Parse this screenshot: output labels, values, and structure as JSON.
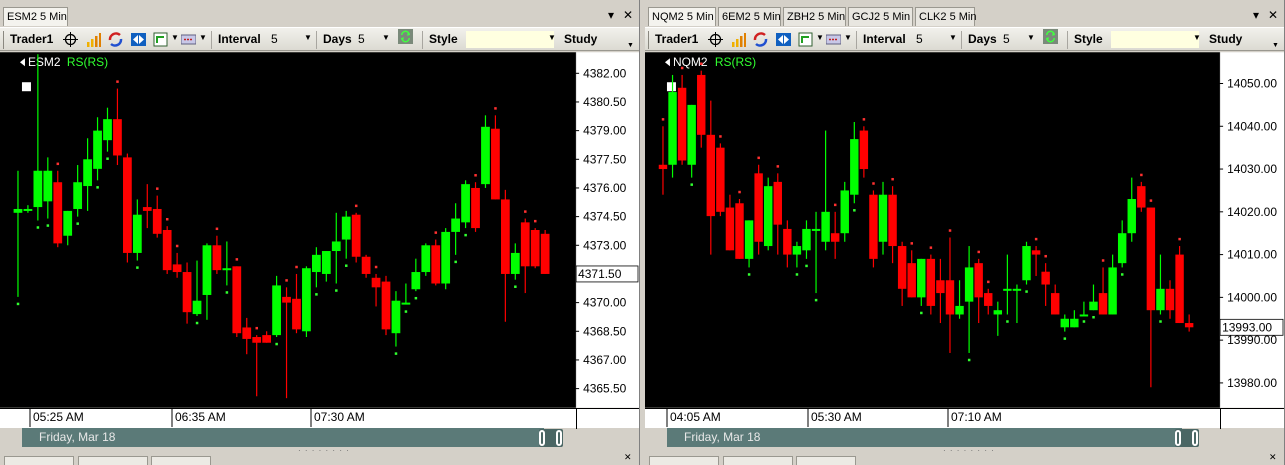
{
  "panels": [
    {
      "tabs": [
        {
          "label": "ESM2 5 Min",
          "active": true
        }
      ],
      "toolbar": {
        "workspace": "Trader1",
        "interval_label": "Interval",
        "interval_value": "5",
        "days_label": "Days",
        "days_value": "5",
        "style_label": "Style",
        "study_label": "Study"
      },
      "chart_data": {
        "type": "candlestick",
        "symbol": "ESM2",
        "indicator": "RS(RS)",
        "last_price_label": "4371.50",
        "y_ticks": [
          "4382.00",
          "4380.50",
          "4379.00",
          "4377.50",
          "4376.00",
          "4374.50",
          "4373.00",
          "4370.00",
          "4368.50",
          "4367.00",
          "4365.50"
        ],
        "ylim": [
          4364.5,
          4383.1
        ],
        "x_labels": [
          "05:25 AM",
          "06:35 AM",
          "07:30 AM"
        ],
        "date_label": "Friday, Mar 18",
        "colors": {
          "up": "#00ff00",
          "down": "#ff0000",
          "background": "#000000",
          "marker": "#ff3030",
          "marker_up": "#30ff30"
        },
        "candles": [
          {
            "o": 4374.7,
            "h": 4376.9,
            "l": 4370.3,
            "c": 4374.9
          },
          {
            "o": 4374.9,
            "h": 4375.1,
            "l": 4374.7,
            "c": 4374.9
          },
          {
            "o": 4375.0,
            "h": 4383.0,
            "l": 4374.3,
            "c": 4376.9
          },
          {
            "o": 4375.3,
            "h": 4377.6,
            "l": 4374.4,
            "c": 4376.9
          },
          {
            "o": 4376.3,
            "h": 4376.9,
            "l": 4372.9,
            "c": 4373.1
          },
          {
            "o": 4373.5,
            "h": 4374.8,
            "l": 4373.0,
            "c": 4374.8
          },
          {
            "o": 4374.9,
            "h": 4377.2,
            "l": 4374.5,
            "c": 4376.3
          },
          {
            "o": 4376.1,
            "h": 4378.6,
            "l": 4374.8,
            "c": 4377.5
          },
          {
            "o": 4377.0,
            "h": 4379.7,
            "l": 4376.4,
            "c": 4379.0
          },
          {
            "o": 4378.5,
            "h": 4380.2,
            "l": 4377.9,
            "c": 4379.6
          },
          {
            "o": 4379.6,
            "h": 4381.2,
            "l": 4377.2,
            "c": 4377.7
          },
          {
            "o": 4377.6,
            "h": 4377.8,
            "l": 4372.1,
            "c": 4372.6
          },
          {
            "o": 4372.6,
            "h": 4375.4,
            "l": 4372.2,
            "c": 4374.6
          },
          {
            "o": 4375.0,
            "h": 4376.2,
            "l": 4373.9,
            "c": 4374.8
          },
          {
            "o": 4374.9,
            "h": 4375.6,
            "l": 4373.4,
            "c": 4373.6
          },
          {
            "o": 4373.8,
            "h": 4374.0,
            "l": 4371.5,
            "c": 4371.7
          },
          {
            "o": 4372.0,
            "h": 4372.6,
            "l": 4371.3,
            "c": 4371.6
          },
          {
            "o": 4371.6,
            "h": 4372.1,
            "l": 4368.9,
            "c": 4369.5
          },
          {
            "o": 4369.4,
            "h": 4372.2,
            "l": 4369.3,
            "c": 4370.1
          },
          {
            "o": 4370.4,
            "h": 4373.1,
            "l": 4369.1,
            "c": 4373.0
          },
          {
            "o": 4373.0,
            "h": 4373.5,
            "l": 4371.5,
            "c": 4371.7
          },
          {
            "o": 4371.7,
            "h": 4373.2,
            "l": 4370.9,
            "c": 4371.8
          },
          {
            "o": 4371.9,
            "h": 4371.9,
            "l": 4368.2,
            "c": 4368.4
          },
          {
            "o": 4368.7,
            "h": 4369.2,
            "l": 4367.3,
            "c": 4368.1
          },
          {
            "o": 4368.2,
            "h": 4368.3,
            "l": 4365.1,
            "c": 4367.9
          },
          {
            "o": 4368.3,
            "h": 4368.5,
            "l": 4367.9,
            "c": 4367.9
          },
          {
            "o": 4368.3,
            "h": 4371.4,
            "l": 4368.2,
            "c": 4370.9
          },
          {
            "o": 4370.3,
            "h": 4370.8,
            "l": 4365.0,
            "c": 4370.0
          },
          {
            "o": 4370.2,
            "h": 4371.5,
            "l": 4368.4,
            "c": 4368.6
          },
          {
            "o": 4368.5,
            "h": 4371.9,
            "l": 4368.2,
            "c": 4371.8
          },
          {
            "o": 4371.6,
            "h": 4372.9,
            "l": 4370.8,
            "c": 4372.5
          },
          {
            "o": 4371.5,
            "h": 4372.7,
            "l": 4371.1,
            "c": 4372.7
          },
          {
            "o": 4372.7,
            "h": 4374.7,
            "l": 4371.0,
            "c": 4373.2
          },
          {
            "o": 4373.3,
            "h": 4374.8,
            "l": 4372.3,
            "c": 4374.5
          },
          {
            "o": 4374.6,
            "h": 4374.7,
            "l": 4372.1,
            "c": 4372.4
          },
          {
            "o": 4372.4,
            "h": 4372.5,
            "l": 4371.3,
            "c": 4371.5
          },
          {
            "o": 4371.3,
            "h": 4371.5,
            "l": 4369.8,
            "c": 4370.8
          },
          {
            "o": 4371.1,
            "h": 4371.4,
            "l": 4368.3,
            "c": 4368.6
          },
          {
            "o": 4368.4,
            "h": 4370.6,
            "l": 4367.7,
            "c": 4370.1
          },
          {
            "o": 4370.0,
            "h": 4371.0,
            "l": 4369.9,
            "c": 4370.0
          },
          {
            "o": 4370.7,
            "h": 4372.3,
            "l": 4370.6,
            "c": 4371.6
          },
          {
            "o": 4371.6,
            "h": 4373.1,
            "l": 4371.4,
            "c": 4373.0
          },
          {
            "o": 4373.0,
            "h": 4373.3,
            "l": 4370.9,
            "c": 4371.0
          },
          {
            "o": 4371.0,
            "h": 4373.9,
            "l": 4370.7,
            "c": 4373.7
          },
          {
            "o": 4373.7,
            "h": 4375.2,
            "l": 4372.5,
            "c": 4374.4
          },
          {
            "o": 4374.2,
            "h": 4376.4,
            "l": 4373.9,
            "c": 4376.2
          },
          {
            "o": 4376.0,
            "h": 4376.3,
            "l": 4373.7,
            "c": 4373.9
          },
          {
            "o": 4376.2,
            "h": 4379.8,
            "l": 4376.0,
            "c": 4379.2
          },
          {
            "o": 4379.1,
            "h": 4379.8,
            "l": 4375.4,
            "c": 4375.4
          },
          {
            "o": 4375.4,
            "h": 4375.9,
            "l": 4369.0,
            "c": 4371.5
          },
          {
            "o": 4371.5,
            "h": 4373.1,
            "l": 4371.2,
            "c": 4372.6
          },
          {
            "o": 4374.2,
            "h": 4374.4,
            "l": 4370.5,
            "c": 4371.9
          },
          {
            "o": 4373.8,
            "h": 4373.9,
            "l": 4371.8,
            "c": 4371.9
          },
          {
            "o": 4373.6,
            "h": 4373.8,
            "l": 4371.5,
            "c": 4371.5
          }
        ]
      }
    },
    {
      "tabs": [
        {
          "label": "NQM2 5 Min",
          "active": true
        },
        {
          "label": "6EM2 5 Min"
        },
        {
          "label": "ZBH2 5 Min"
        },
        {
          "label": "GCJ2 5 Min"
        },
        {
          "label": "CLK2 5 Min"
        }
      ],
      "toolbar": {
        "workspace": "Trader1",
        "interval_label": "Interval",
        "interval_value": "5",
        "days_label": "Days",
        "days_value": "5",
        "style_label": "Style",
        "study_label": "Study"
      },
      "chart_data": {
        "type": "candlestick",
        "symbol": "NQM2",
        "indicator": "RS(RS)",
        "last_price_label": "13993.00",
        "y_ticks": [
          "14050.00",
          "14040.00",
          "14030.00",
          "14020.00",
          "14010.00",
          "14000.00",
          "13990.00",
          "13980.00"
        ],
        "ylim": [
          13974.2,
          14057.3
        ],
        "x_labels": [
          "04:05 AM",
          "05:30 AM",
          "07:10 AM"
        ],
        "date_label": "Friday, Mar 18",
        "colors": {
          "up": "#00ff00",
          "down": "#ff0000",
          "background": "#000000",
          "marker": "#ff3030",
          "marker_up": "#30ff30"
        },
        "candles": [
          {
            "o": 14031.0,
            "h": 14040.0,
            "l": 14024.0,
            "c": 14030.0
          },
          {
            "o": 14031.0,
            "h": 14052.0,
            "l": 14028.0,
            "c": 14048.0
          },
          {
            "o": 14049.0,
            "h": 14052.0,
            "l": 14031.0,
            "c": 14032.0
          },
          {
            "o": 14031.0,
            "h": 14045.0,
            "l": 14028.0,
            "c": 14045.0
          },
          {
            "o": 14052.0,
            "h": 14053.0,
            "l": 14035.0,
            "c": 14038.0
          },
          {
            "o": 14038.0,
            "h": 14046.0,
            "l": 14010.0,
            "c": 14019.0
          },
          {
            "o": 14035.0,
            "h": 14036.0,
            "l": 14019.0,
            "c": 14020.0
          },
          {
            "o": 14021.0,
            "h": 14024.0,
            "l": 14011.0,
            "c": 14011.0
          },
          {
            "o": 14022.0,
            "h": 14023.0,
            "l": 14009.0,
            "c": 14009.0
          },
          {
            "o": 14009.0,
            "h": 14018.0,
            "l": 14007.0,
            "c": 14018.0
          },
          {
            "o": 14029.0,
            "h": 14031.0,
            "l": 14010.0,
            "c": 14013.0
          },
          {
            "o": 14012.0,
            "h": 14028.0,
            "l": 14011.0,
            "c": 14026.0
          },
          {
            "o": 14027.0,
            "h": 14029.0,
            "l": 14010.0,
            "c": 14017.0
          },
          {
            "o": 14016.0,
            "h": 14018.0,
            "l": 14007.0,
            "c": 14010.0
          },
          {
            "o": 14010.0,
            "h": 14013.0,
            "l": 14007.0,
            "c": 14012.0
          },
          {
            "o": 14011.0,
            "h": 14018.0,
            "l": 14009.0,
            "c": 14016.0
          },
          {
            "o": 14016.0,
            "h": 14020.0,
            "l": 14001.0,
            "c": 14016.0
          },
          {
            "o": 14013.0,
            "h": 14039.0,
            "l": 14011.0,
            "c": 14020.0
          },
          {
            "o": 14015.0,
            "h": 14020.0,
            "l": 14009.0,
            "c": 14013.0
          },
          {
            "o": 14015.0,
            "h": 14027.0,
            "l": 14013.0,
            "c": 14025.0
          },
          {
            "o": 14024.0,
            "h": 14041.0,
            "l": 14022.0,
            "c": 14037.0
          },
          {
            "o": 14039.0,
            "h": 14040.0,
            "l": 14028.0,
            "c": 14030.0
          },
          {
            "o": 14024.0,
            "h": 14025.0,
            "l": 14007.0,
            "c": 14009.0
          },
          {
            "o": 14013.0,
            "h": 14027.0,
            "l": 14010.0,
            "c": 14024.0
          },
          {
            "o": 14024.0,
            "h": 14026.0,
            "l": 14008.0,
            "c": 14012.0
          },
          {
            "o": 14012.0,
            "h": 14013.0,
            "l": 13998.0,
            "c": 14002.0
          },
          {
            "o": 14008.0,
            "h": 14011.0,
            "l": 14000.0,
            "c": 14000.0
          },
          {
            "o": 14000.0,
            "h": 14009.0,
            "l": 13998.0,
            "c": 14009.0
          },
          {
            "o": 14009.0,
            "h": 14010.0,
            "l": 13996.0,
            "c": 13998.0
          },
          {
            "o": 14004.0,
            "h": 14009.0,
            "l": 13994.0,
            "c": 14001.0
          },
          {
            "o": 14004.0,
            "h": 14014.0,
            "l": 13987.0,
            "c": 13996.0
          },
          {
            "o": 13996.0,
            "h": 14004.0,
            "l": 13995.0,
            "c": 13998.0
          },
          {
            "o": 13999.0,
            "h": 14012.0,
            "l": 13987.0,
            "c": 14007.0
          },
          {
            "o": 14008.0,
            "h": 14009.0,
            "l": 13994.0,
            "c": 14000.0
          },
          {
            "o": 14001.0,
            "h": 14002.0,
            "l": 13996.0,
            "c": 13998.0
          },
          {
            "o": 13996.0,
            "h": 13999.0,
            "l": 13991.0,
            "c": 13997.0
          },
          {
            "o": 14002.0,
            "h": 14010.0,
            "l": 13996.0,
            "c": 14002.0
          },
          {
            "o": 14002.0,
            "h": 14003.0,
            "l": 13994.0,
            "c": 14002.0
          },
          {
            "o": 14004.0,
            "h": 14013.0,
            "l": 14003.0,
            "c": 14012.0
          },
          {
            "o": 14011.0,
            "h": 14012.0,
            "l": 14005.0,
            "c": 14010.0
          },
          {
            "o": 14006.0,
            "h": 14008.0,
            "l": 13998.0,
            "c": 14003.0
          },
          {
            "o": 14001.0,
            "h": 14003.0,
            "l": 13996.0,
            "c": 13996.0
          },
          {
            "o": 13993.0,
            "h": 13996.0,
            "l": 13992.0,
            "c": 13995.0
          },
          {
            "o": 13993.0,
            "h": 13997.0,
            "l": 13993.0,
            "c": 13995.0
          },
          {
            "o": 13996.0,
            "h": 13999.0,
            "l": 13996.0,
            "c": 13996.0
          },
          {
            "o": 13997.0,
            "h": 14003.0,
            "l": 13997.0,
            "c": 13999.0
          },
          {
            "o": 14001.0,
            "h": 14007.0,
            "l": 13996.0,
            "c": 13996.0
          },
          {
            "o": 13996.0,
            "h": 14010.0,
            "l": 13996.0,
            "c": 14007.0
          },
          {
            "o": 14008.0,
            "h": 14018.0,
            "l": 14007.0,
            "c": 14015.0
          },
          {
            "o": 14015.0,
            "h": 14028.0,
            "l": 14013.0,
            "c": 14023.0
          },
          {
            "o": 14026.0,
            "h": 14027.0,
            "l": 14020.0,
            "c": 14021.0
          },
          {
            "o": 14021.0,
            "h": 14021.0,
            "l": 13979.0,
            "c": 13997.0
          },
          {
            "o": 13997.0,
            "h": 14010.0,
            "l": 13996.0,
            "c": 14002.0
          },
          {
            "o": 14002.0,
            "h": 14004.0,
            "l": 13995.0,
            "c": 13997.0
          },
          {
            "o": 14010.0,
            "h": 14012.0,
            "l": 13994.0,
            "c": 13994.0
          },
          {
            "o": 13994.0,
            "h": 13996.0,
            "l": 13992.0,
            "c": 13993.0
          }
        ]
      }
    }
  ]
}
